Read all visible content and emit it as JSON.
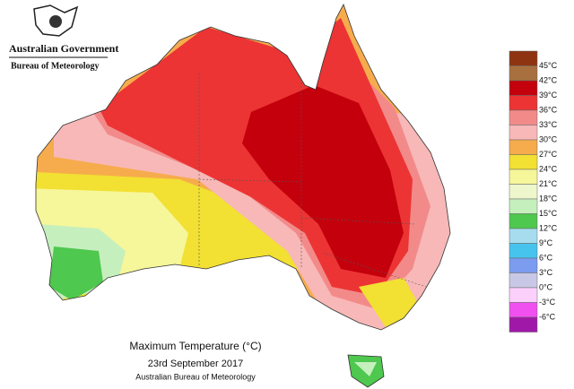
{
  "header": {
    "title": "Australian Government",
    "subtitle": "Bureau of Meteorology"
  },
  "caption": {
    "title": "Maximum Temperature (°C)",
    "date": "23rd September 2017",
    "source": "Australian Bureau of Meteorology"
  },
  "legend": {
    "labels": [
      "45°C",
      "42°C",
      "39°C",
      "36°C",
      "33°C",
      "30°C",
      "27°C",
      "24°C",
      "21°C",
      "18°C",
      "15°C",
      "12°C",
      "9°C",
      "6°C",
      "3°C",
      "0°C",
      "-3°C",
      "-6°C"
    ],
    "colors": [
      "#8e3410",
      "#a8703e",
      "#c3000c",
      "#ec3434",
      "#f38a8a",
      "#f8b8b8",
      "#f6ac4c",
      "#f2e032",
      "#f6f69a",
      "#eef6cc",
      "#c6efbe",
      "#4ec84e",
      "#a6dcee",
      "#46c4ee",
      "#7c9cf0",
      "#c8c8e6",
      "#fbd0fb",
      "#f050f0",
      "#a018a8"
    ]
  }
}
